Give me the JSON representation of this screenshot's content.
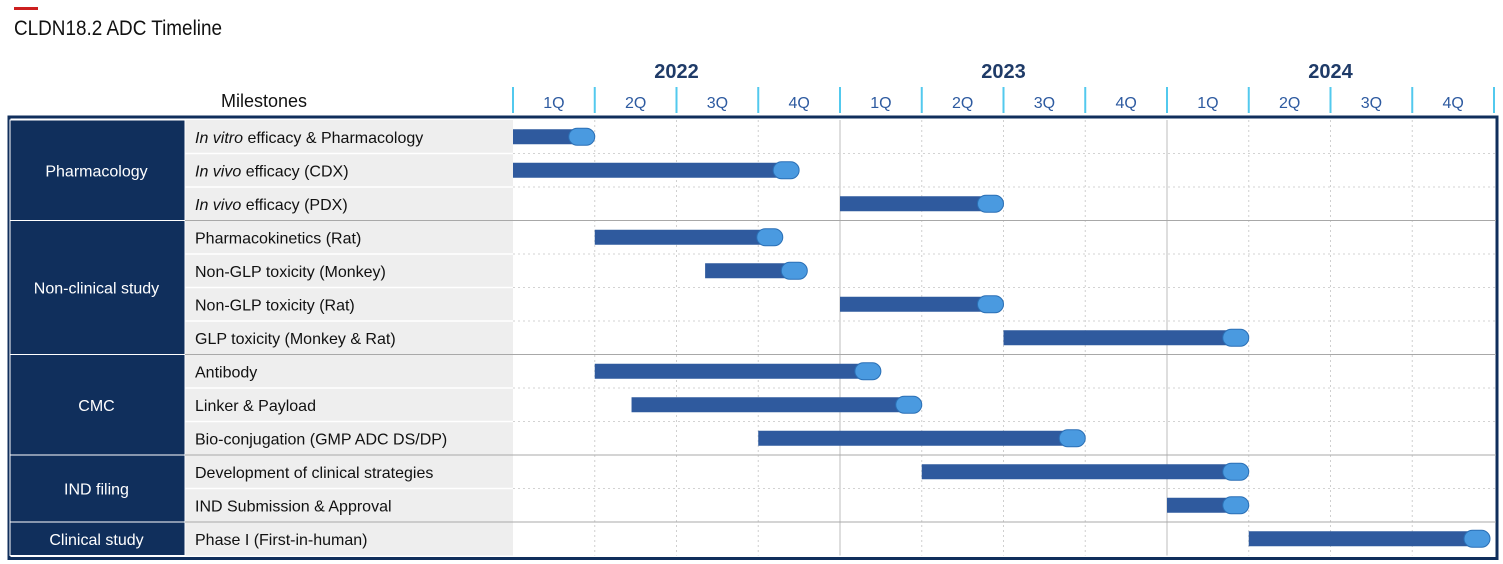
{
  "title": "CLDN18.2 ADC Timeline",
  "colors": {
    "bar": "#2f5a9e",
    "cap": "#4a9ae0",
    "category_bg": "#102f5c",
    "accent": "#cc1f1f",
    "quarter_divider": "#52c9ee"
  },
  "chart_data": {
    "type": "gantt",
    "title": "CLDN18.2 ADC Timeline",
    "milestones_header": "Milestones",
    "years": [
      "2022",
      "2023",
      "2024"
    ],
    "quarters": [
      "1Q",
      "2Q",
      "3Q",
      "4Q",
      "1Q",
      "2Q",
      "3Q",
      "4Q",
      "1Q",
      "2Q",
      "3Q",
      "4Q"
    ],
    "time_unit": "quarters from start of 2022",
    "categories": [
      {
        "name": "Pharmacology",
        "rows": [
          0,
          1,
          2
        ]
      },
      {
        "name": "Non-clinical study",
        "rows": [
          3,
          4,
          5,
          6
        ]
      },
      {
        "name": "CMC",
        "rows": [
          7,
          8,
          9
        ]
      },
      {
        "name": "IND filing",
        "rows": [
          10,
          11
        ]
      },
      {
        "name": "Clinical study",
        "rows": [
          12
        ]
      }
    ],
    "milestones": [
      {
        "italic": "In vitro",
        "label": " efficacy & Pharmacology",
        "start": 0.0,
        "end": 1.0
      },
      {
        "italic": "In vivo",
        "label": " efficacy (CDX)",
        "start": 0.0,
        "end": 3.5
      },
      {
        "italic": "In vivo",
        "label": " efficacy (PDX)",
        "start": 4.0,
        "end": 6.0
      },
      {
        "italic": "",
        "label": "Pharmacokinetics (Rat)",
        "start": 1.0,
        "end": 3.3
      },
      {
        "italic": "",
        "label": "Non-GLP toxicity (Monkey)",
        "start": 2.35,
        "end": 3.6
      },
      {
        "italic": "",
        "label": "Non-GLP toxicity (Rat)",
        "start": 4.0,
        "end": 6.0
      },
      {
        "italic": "",
        "label": "GLP toxicity (Monkey & Rat)",
        "start": 6.0,
        "end": 9.0
      },
      {
        "italic": "",
        "label": "Antibody",
        "start": 1.0,
        "end": 4.5
      },
      {
        "italic": "",
        "label": "Linker & Payload",
        "start": 1.45,
        "end": 5.0
      },
      {
        "italic": "",
        "label": "Bio-conjugation (GMP ADC DS/DP)",
        "start": 3.0,
        "end": 7.0
      },
      {
        "italic": "",
        "label": "Development of clinical strategies",
        "start": 5.0,
        "end": 9.0
      },
      {
        "italic": "",
        "label": "IND Submission & Approval",
        "start": 8.0,
        "end": 9.0
      },
      {
        "italic": "",
        "label": "Phase I (First-in-human)",
        "start": 9.0,
        "end": 12.0
      }
    ]
  }
}
